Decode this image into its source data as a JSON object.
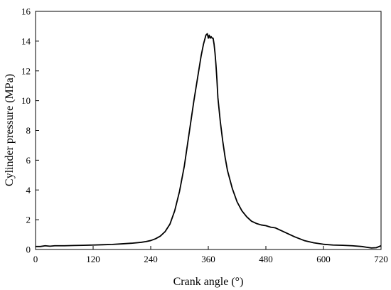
{
  "chart_data": {
    "type": "line",
    "title": "",
    "xlabel": "Crank angle (°)",
    "ylabel": "Cylinder pressure (MPa)",
    "xlim": [
      0,
      720
    ],
    "ylim": [
      0,
      16
    ],
    "xticks": [
      0,
      120,
      240,
      360,
      480,
      600,
      720
    ],
    "yticks": [
      0,
      2,
      4,
      6,
      8,
      10,
      12,
      14,
      16
    ],
    "grid": false,
    "legend": "none",
    "line_color": "#000000",
    "series": [
      {
        "x": [
          0,
          10,
          20,
          30,
          40,
          60,
          80,
          100,
          120,
          140,
          160,
          180,
          200,
          220,
          230,
          240,
          250,
          260,
          270,
          280,
          290,
          300,
          310,
          320,
          330,
          340,
          345,
          350,
          355,
          358,
          360,
          362,
          364,
          366,
          368,
          370,
          372,
          374,
          376,
          378,
          380,
          385,
          390,
          395,
          400,
          410,
          420,
          430,
          440,
          450,
          460,
          470,
          480,
          490,
          500,
          510,
          520,
          530,
          540,
          560,
          580,
          600,
          620,
          640,
          660,
          680,
          690,
          700,
          710,
          720
        ],
        "y": [
          0.2,
          0.2,
          0.25,
          0.22,
          0.25,
          0.25,
          0.27,
          0.28,
          0.3,
          0.32,
          0.34,
          0.38,
          0.42,
          0.48,
          0.53,
          0.6,
          0.72,
          0.9,
          1.2,
          1.7,
          2.6,
          3.9,
          5.6,
          7.8,
          10.0,
          12.0,
          13.0,
          13.8,
          14.4,
          14.5,
          14.2,
          14.4,
          14.2,
          14.3,
          14.2,
          14.2,
          13.8,
          13.2,
          12.4,
          11.4,
          10.2,
          8.6,
          7.3,
          6.2,
          5.3,
          4.1,
          3.2,
          2.6,
          2.2,
          1.9,
          1.75,
          1.65,
          1.6,
          1.5,
          1.45,
          1.3,
          1.15,
          1.0,
          0.85,
          0.6,
          0.45,
          0.35,
          0.3,
          0.28,
          0.25,
          0.2,
          0.15,
          0.1,
          0.12,
          0.25
        ]
      }
    ]
  }
}
